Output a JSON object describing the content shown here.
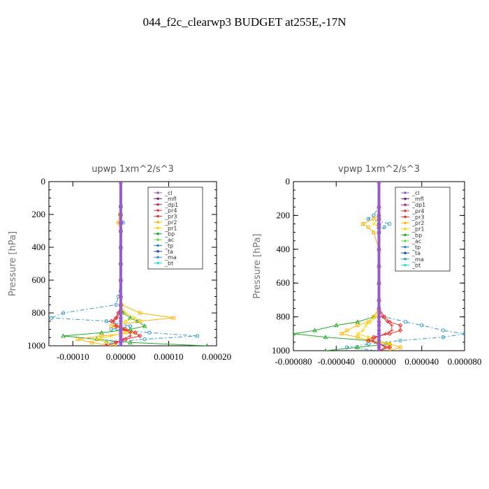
{
  "title": "044_f2c_clearwp3  BUDGET at255E,-17N",
  "legend": [
    {
      "name": "_cl",
      "color": "#9b59d0"
    },
    {
      "name": "_mfl",
      "color": "#7a1f7a"
    },
    {
      "name": "_dp1",
      "color": "#b0306a"
    },
    {
      "name": "_pr4",
      "color": "#e03a3a"
    },
    {
      "name": "_pr3",
      "color": "#e83030"
    },
    {
      "name": "_pr2",
      "color": "#ffb300"
    },
    {
      "name": "_pr1",
      "color": "#ffd400"
    },
    {
      "name": "_bp",
      "color": "#22aa22"
    },
    {
      "name": "_ac",
      "color": "#66dd44"
    },
    {
      "name": "_tp",
      "color": "#2288cc"
    },
    {
      "name": "_ta",
      "color": "#1a4fb0"
    },
    {
      "name": "_ma",
      "color": "#3399cc"
    },
    {
      "name": "_bt",
      "color": "#22dddd"
    }
  ],
  "chart_data": [
    {
      "type": "line",
      "title": "upwp   1xm^2/s^3",
      "xlabel": "",
      "ylabel": "Pressure [hPa]",
      "xlim": [
        -0.00015,
        0.0002
      ],
      "ylim": [
        1000,
        0
      ],
      "xticks": [
        -0.0001,
        0.0,
        0.0001,
        0.0002
      ],
      "xtick_labels": [
        "-0.00010",
        "0.00000",
        "0.00010",
        "0.00020"
      ],
      "yticks": [
        0,
        200,
        400,
        600,
        800,
        1000
      ],
      "ytick_labels": [
        "0",
        "200",
        "400",
        "600",
        "800",
        "1000"
      ],
      "pressure": [
        0,
        150,
        200,
        250,
        300,
        400,
        500,
        600,
        700,
        750,
        800,
        830,
        850,
        880,
        900,
        920,
        940,
        960,
        980,
        1000
      ],
      "series": [
        {
          "name": "_ma",
          "values": [
            0,
            0,
            0,
            5e-06,
            0,
            0,
            0,
            0,
            -5e-06,
            -1e-05,
            -0.00012,
            -0.000145,
            -3e-05,
            2e-05,
            -2e-05,
            6e-05,
            0.00016,
            5e-05,
            -3e-05,
            0
          ]
        },
        {
          "name": "_bp",
          "values": [
            0,
            0,
            0,
            0,
            0,
            0,
            0,
            0,
            0,
            0,
            5e-06,
            2e-05,
            3.5e-05,
            5e-05,
            2e-05,
            -4e-05,
            -0.00012,
            -5e-05,
            2e-05,
            0.00018
          ]
        },
        {
          "name": "_pr2",
          "values": [
            0,
            0,
            -2e-06,
            -5e-06,
            0,
            0,
            0,
            0,
            0,
            2e-06,
            4e-05,
            0.00011,
            4e-05,
            -2e-05,
            5e-06,
            3e-05,
            -4e-05,
            -9e-05,
            -6e-05,
            -2e-05
          ]
        },
        {
          "name": "_pr1",
          "values": [
            0,
            0,
            0,
            0,
            0,
            0,
            0,
            0,
            0,
            0,
            1e-05,
            3e-05,
            1e-05,
            -1e-05,
            0,
            1e-05,
            -2e-05,
            -5e-05,
            -3e-05,
            -1e-05
          ]
        },
        {
          "name": "_pr3",
          "values": [
            0,
            0,
            0,
            0,
            0,
            0,
            0,
            0,
            0,
            0,
            -5e-06,
            -1e-05,
            -2e-05,
            -1e-05,
            1e-05,
            3e-05,
            4e-05,
            1e-05,
            -1e-05,
            -3e-05
          ]
        },
        {
          "name": "_pr4",
          "values": [
            0,
            0,
            0,
            0,
            0,
            0,
            0,
            0,
            0,
            0,
            -3e-06,
            -8e-06,
            -1.5e-05,
            -8e-06,
            5e-06,
            2e-05,
            2e-05,
            5e-06,
            -1e-05,
            -3e-05
          ]
        },
        {
          "name": "_cl",
          "values": [
            0,
            0,
            0,
            0,
            0,
            0,
            0,
            0,
            0,
            0,
            0,
            0,
            0,
            0,
            0,
            0,
            0,
            0,
            0,
            0
          ]
        }
      ]
    },
    {
      "type": "line",
      "title": "vpwp   1xm^2/s^3",
      "xlabel": "",
      "ylabel": "Pressure [hPa]",
      "xlim": [
        -8e-05,
        8e-05
      ],
      "ylim": [
        1000,
        0
      ],
      "xticks": [
        -8e-05,
        -4e-05,
        0.0,
        4e-05,
        8e-05
      ],
      "xtick_labels": [
        "-0.000080",
        "-0.000040",
        "0.000000",
        "0.000040",
        "0.000080"
      ],
      "yticks": [
        0,
        200,
        400,
        600,
        800,
        1000
      ],
      "ytick_labels": [
        "0",
        "200",
        "400",
        "600",
        "800",
        "1000"
      ],
      "pressure": [
        0,
        150,
        200,
        220,
        250,
        270,
        300,
        400,
        500,
        600,
        700,
        750,
        800,
        830,
        850,
        880,
        900,
        920,
        940,
        960,
        980,
        1000
      ],
      "series": [
        {
          "name": "_ma",
          "values": [
            0,
            0,
            -5e-06,
            -1e-05,
            1e-05,
            5e-06,
            0,
            0,
            0,
            0,
            0,
            0,
            5e-06,
            2.5e-05,
            4e-05,
            6e-05,
            8e-05,
            6e-05,
            2e-05,
            -1e-05,
            -3e-05,
            0
          ]
        },
        {
          "name": "_bp",
          "values": [
            0,
            0,
            0,
            0,
            0,
            0,
            0,
            0,
            0,
            0,
            0,
            0,
            -5e-06,
            -2e-05,
            -4e-05,
            -6e-05,
            -8e-05,
            -5e-05,
            -1e-05,
            1e-05,
            -2e-05,
            -5e-05
          ]
        },
        {
          "name": "_pr2",
          "values": [
            0,
            0,
            0,
            -5e-06,
            -1.5e-05,
            -1e-05,
            -5e-06,
            0,
            0,
            0,
            0,
            0,
            -5e-06,
            -1e-05,
            -2e-05,
            -3e-05,
            -3.5e-05,
            -2e-05,
            -1e-05,
            1e-05,
            2e-05,
            1e-05
          ]
        },
        {
          "name": "_pr1",
          "values": [
            0,
            0,
            0,
            0,
            -5e-06,
            0,
            0,
            0,
            0,
            0,
            0,
            0,
            -3e-06,
            -8e-06,
            -1.2e-05,
            -1.5e-05,
            -2e-05,
            -1e-05,
            0,
            1e-05,
            1e-05,
            0
          ]
        },
        {
          "name": "_pr3",
          "values": [
            0,
            0,
            0,
            0,
            0,
            0,
            0,
            0,
            0,
            0,
            0,
            0,
            5e-06,
            1e-05,
            2e-05,
            2e-05,
            1e-05,
            -5e-06,
            -1e-05,
            0,
            1e-05,
            0
          ]
        },
        {
          "name": "_pr4",
          "values": [
            0,
            0,
            0,
            0,
            0,
            0,
            0,
            0,
            0,
            0,
            0,
            0,
            3e-06,
            8e-06,
            1.2e-05,
            1.2e-05,
            6e-06,
            -3e-06,
            -6e-06,
            0,
            6e-06,
            0
          ]
        },
        {
          "name": "_cl",
          "values": [
            0,
            0,
            0,
            0,
            0,
            0,
            0,
            0,
            0,
            0,
            0,
            0,
            0,
            0,
            0,
            0,
            0,
            0,
            0,
            0,
            0,
            0
          ]
        }
      ]
    }
  ]
}
